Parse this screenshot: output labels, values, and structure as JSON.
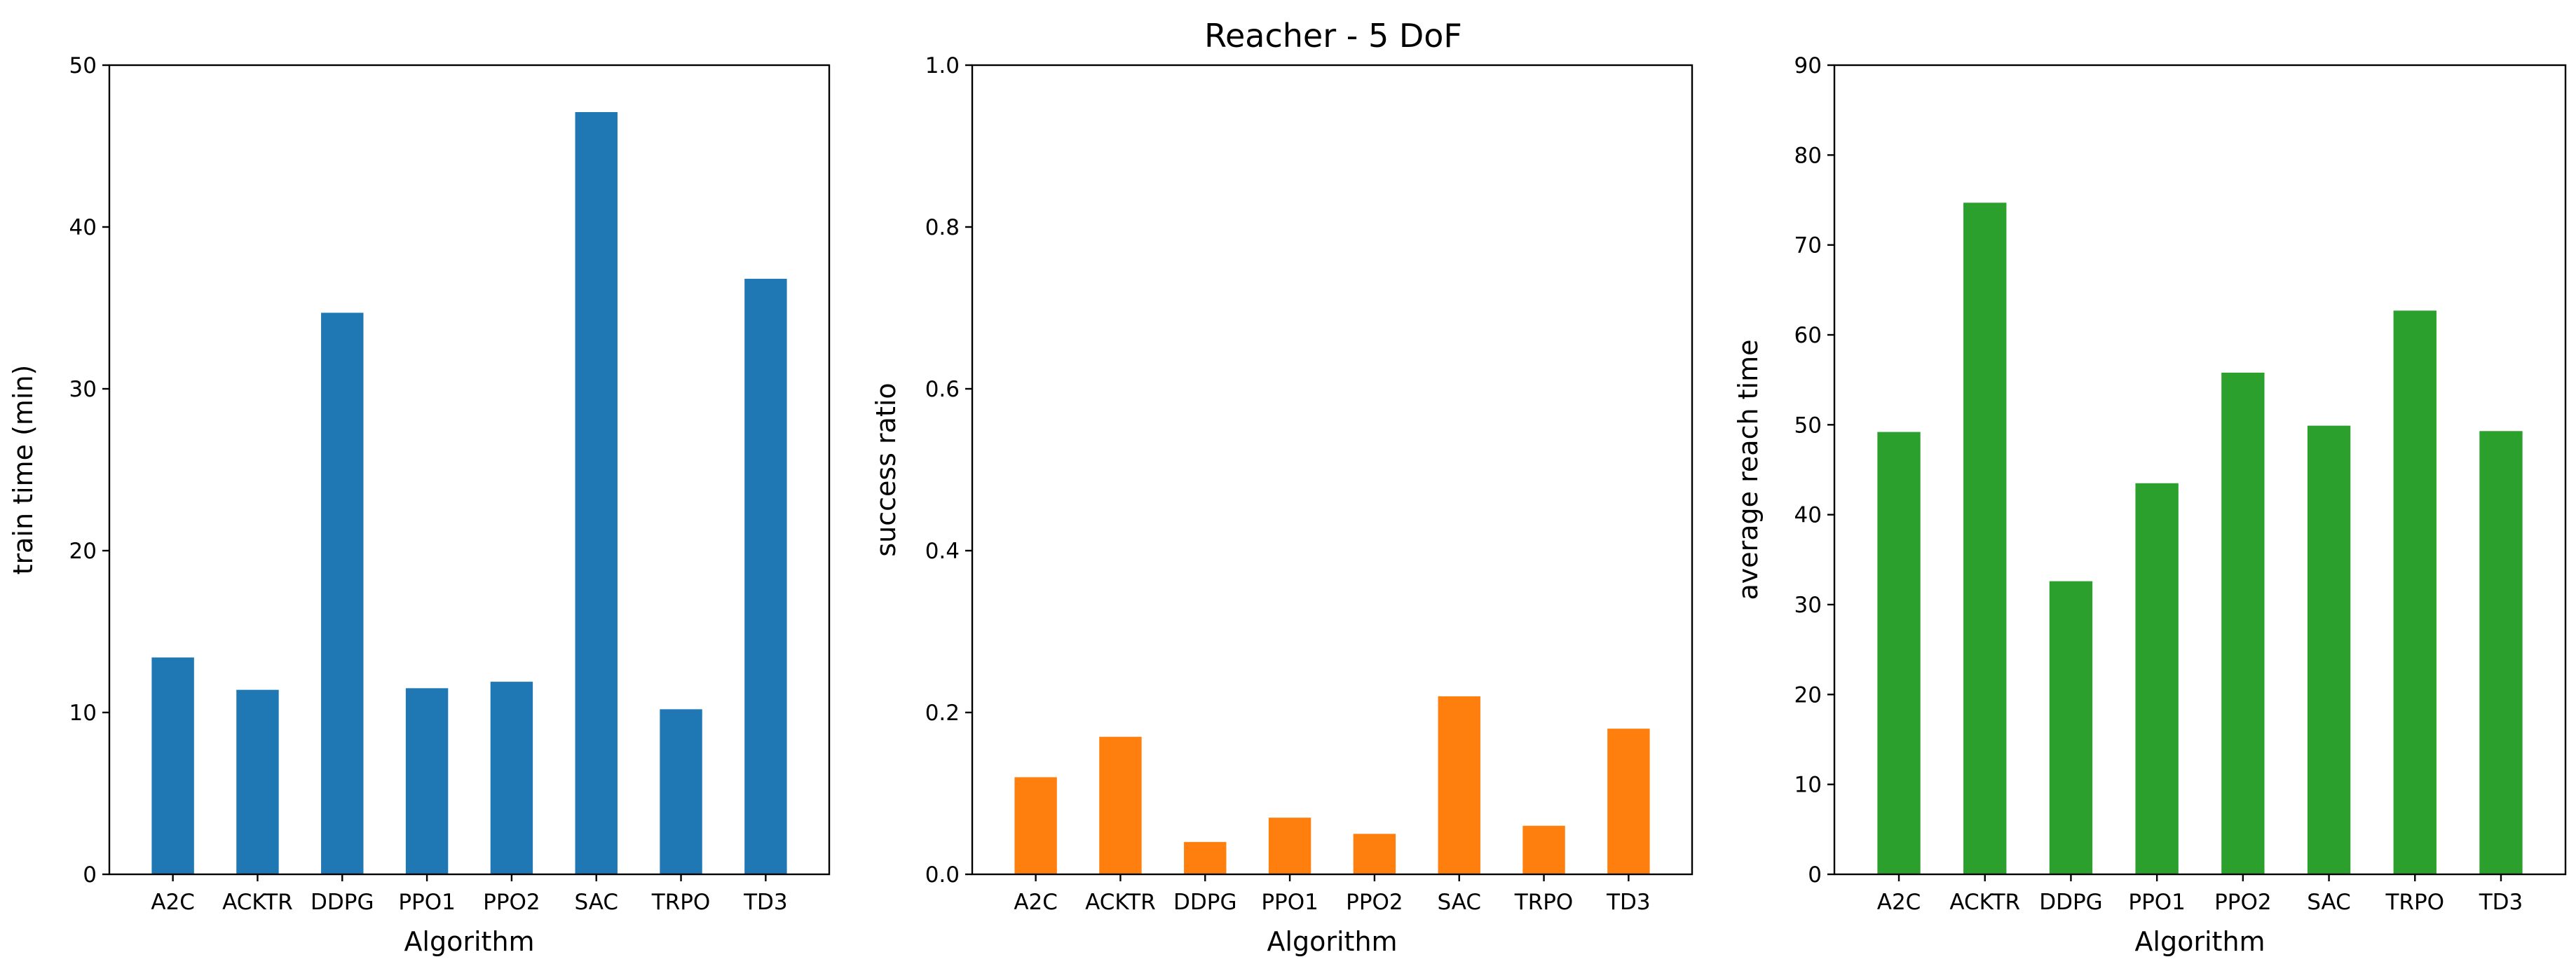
{
  "title": "Reacher - 5 DoF",
  "chart_data": [
    {
      "type": "bar",
      "categories": [
        "A2C",
        "ACKTR",
        "DDPG",
        "PPO1",
        "PPO2",
        "SAC",
        "TRPO",
        "TD3"
      ],
      "values": [
        13.4,
        11.4,
        34.7,
        11.5,
        11.9,
        47.1,
        10.2,
        36.8
      ],
      "xlabel": "Algorithm",
      "ylabel": "train time (min)",
      "ylim": [
        0,
        50
      ],
      "yticks": [
        "0",
        "10",
        "20",
        "30",
        "40",
        "50"
      ],
      "color": "#1f77b4",
      "grid": false
    },
    {
      "type": "bar",
      "categories": [
        "A2C",
        "ACKTR",
        "DDPG",
        "PPO1",
        "PPO2",
        "SAC",
        "TRPO",
        "TD3"
      ],
      "values": [
        0.12,
        0.17,
        0.04,
        0.07,
        0.05,
        0.22,
        0.06,
        0.18
      ],
      "xlabel": "Algorithm",
      "ylabel": "success ratio",
      "ylim": [
        0,
        1.0
      ],
      "yticks": [
        "0.0",
        "0.2",
        "0.4",
        "0.6",
        "0.8",
        "1.0"
      ],
      "color": "#ff7f0e",
      "grid": false
    },
    {
      "type": "bar",
      "categories": [
        "A2C",
        "ACKTR",
        "DDPG",
        "PPO1",
        "PPO2",
        "SAC",
        "TRPO",
        "TD3"
      ],
      "values": [
        49.2,
        74.7,
        32.6,
        43.5,
        55.8,
        49.9,
        62.7,
        49.3
      ],
      "xlabel": "Algorithm",
      "ylabel": "average reach time",
      "ylim": [
        0,
        90
      ],
      "yticks": [
        "0",
        "10",
        "20",
        "30",
        "40",
        "50",
        "60",
        "70",
        "80",
        "90"
      ],
      "color": "#2ca02c",
      "grid": false
    }
  ]
}
